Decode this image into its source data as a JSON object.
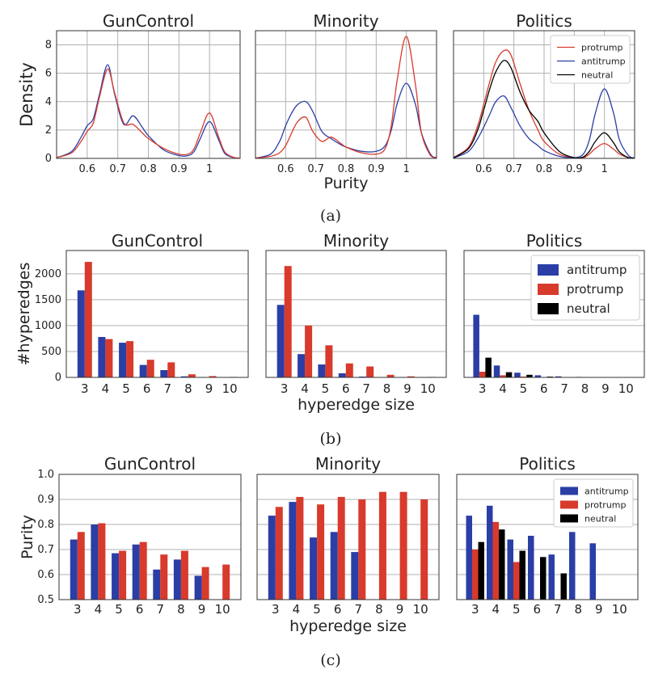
{
  "colors": {
    "antitrump": "#2b3ea6",
    "protrump": "#d83a2c",
    "neutral": "#000000",
    "grid": "#b0b0b0"
  },
  "captions": {
    "a": "(a)",
    "b": "(b)",
    "c": "(c)"
  },
  "chart_data": [
    {
      "id": "a",
      "type": "line",
      "ylabel": "Density",
      "xlabel": "Purity",
      "xlim": [
        0.5,
        1.1
      ],
      "ylim": [
        0,
        9
      ],
      "xticks": [
        "0.6",
        "0.7",
        "0.8",
        "0.9",
        "1"
      ],
      "xtick_values": [
        0.6,
        0.7,
        0.8,
        0.9,
        1.0
      ],
      "yticks": [
        "0",
        "2",
        "4",
        "6",
        "8"
      ],
      "ytick_values": [
        0,
        2,
        4,
        6,
        8
      ],
      "x": [
        0.5,
        0.55,
        0.58,
        0.6,
        0.62,
        0.64,
        0.667,
        0.69,
        0.72,
        0.75,
        0.78,
        0.8,
        0.85,
        0.9,
        0.93,
        0.95,
        0.97,
        1.0,
        1.03,
        1.05,
        1.08,
        1.1
      ],
      "panels": [
        {
          "title": "GunControl",
          "series": [
            {
              "name": "antitrump",
              "values": [
                0.05,
                0.5,
                1.5,
                2.3,
                2.8,
                4.5,
                6.6,
                4.5,
                2.4,
                3.0,
                2.2,
                1.6,
                0.6,
                0.2,
                0.2,
                0.5,
                1.4,
                2.6,
                1.3,
                0.35,
                0.05,
                0.02
              ]
            },
            {
              "name": "protrump",
              "values": [
                0.05,
                0.4,
                1.2,
                1.9,
                2.5,
                4.3,
                6.3,
                4.6,
                2.5,
                2.4,
                1.8,
                1.4,
                0.7,
                0.3,
                0.3,
                0.7,
                1.8,
                3.2,
                1.5,
                0.45,
                0.06,
                0.02
              ]
            }
          ]
        },
        {
          "title": "Minority",
          "series": [
            {
              "name": "antitrump",
              "values": [
                0.02,
                0.3,
                1.2,
                2.3,
                3.2,
                3.8,
                4.0,
                3.3,
                1.9,
                1.4,
                1.0,
                0.8,
                0.5,
                0.5,
                0.9,
                2.0,
                3.9,
                5.3,
                3.8,
                1.8,
                0.3,
                0.05
              ]
            },
            {
              "name": "protrump",
              "values": [
                0.02,
                0.15,
                0.4,
                0.9,
                1.8,
                2.6,
                2.9,
                1.9,
                1.2,
                1.5,
                1.1,
                0.8,
                0.4,
                0.3,
                0.7,
                2.3,
                5.6,
                8.6,
                5.2,
                1.8,
                0.2,
                0.03
              ]
            }
          ]
        },
        {
          "title": "Politics",
          "series": [
            {
              "name": "protrump",
              "values": [
                0.05,
                0.8,
                2.3,
                3.8,
                5.4,
                6.8,
                7.6,
                7.3,
                5.3,
                3.4,
                2.0,
                1.2,
                0.3,
                0.05,
                0.05,
                0.3,
                0.7,
                1.05,
                0.65,
                0.3,
                0.05,
                0.02
              ]
            },
            {
              "name": "antitrump",
              "values": [
                0.03,
                0.5,
                1.4,
                2.2,
                3.1,
                4.0,
                4.4,
                3.6,
                2.3,
                1.4,
                0.9,
                0.55,
                0.15,
                0.05,
                0.3,
                1.3,
                3.2,
                4.9,
                3.2,
                1.3,
                0.2,
                0.03
              ]
            },
            {
              "name": "neutral",
              "values": [
                0.04,
                0.7,
                2.0,
                3.4,
                4.9,
                6.1,
                6.9,
                6.4,
                4.7,
                3.4,
                2.6,
                1.8,
                0.5,
                0.05,
                0.1,
                0.5,
                1.2,
                1.8,
                1.1,
                0.45,
                0.05,
                0.02
              ]
            }
          ]
        }
      ],
      "legend": {
        "panel": 2,
        "position": "top-right",
        "entries": [
          "protrump",
          "antitrump",
          "neutral"
        ]
      }
    },
    {
      "id": "b",
      "type": "bar",
      "ylabel": "#hyperedges",
      "xlabel": "hyperedge size",
      "categories": [
        "3",
        "4",
        "5",
        "6",
        "7",
        "8",
        "9",
        "10"
      ],
      "ylim": [
        0,
        2450
      ],
      "yticks": [
        "0",
        "500",
        "1000",
        "1500",
        "2000"
      ],
      "ytick_values": [
        0,
        500,
        1000,
        1500,
        2000
      ],
      "panels": [
        {
          "title": "GunControl",
          "series": [
            {
              "name": "antitrump",
              "values": [
                1680,
                780,
                670,
                240,
                140,
                20,
                8,
                4
              ]
            },
            {
              "name": "protrump",
              "values": [
                2230,
                740,
                700,
                340,
                290,
                60,
                25,
                10
              ]
            }
          ]
        },
        {
          "title": "Minority",
          "series": [
            {
              "name": "antitrump",
              "values": [
                1400,
                450,
                250,
                80,
                15,
                5,
                2,
                1
              ]
            },
            {
              "name": "protrump",
              "values": [
                2150,
                1000,
                620,
                270,
                210,
                50,
                20,
                10
              ]
            }
          ]
        },
        {
          "title": "Politics",
          "series": [
            {
              "name": "antitrump",
              "values": [
                1210,
                230,
                90,
                40,
                20,
                10,
                4,
                2
              ]
            },
            {
              "name": "protrump",
              "values": [
                110,
                40,
                15,
                5,
                2,
                1,
                0,
                0
              ]
            },
            {
              "name": "neutral",
              "values": [
                380,
                100,
                50,
                15,
                5,
                2,
                1,
                0
              ]
            }
          ]
        }
      ],
      "legend": {
        "panel": 2,
        "position": "top-right",
        "entries": [
          "antitrump",
          "protrump",
          "neutral"
        ]
      }
    },
    {
      "id": "c",
      "type": "bar",
      "ylabel": "Purity",
      "xlabel": "hyperedge size",
      "categories": [
        "3",
        "4",
        "5",
        "6",
        "7",
        "8",
        "9",
        "10"
      ],
      "ylim": [
        0.5,
        1.0
      ],
      "yticks": [
        "0.5",
        "0.6",
        "0.7",
        "0.8",
        "0.9",
        "1.0"
      ],
      "ytick_values": [
        0.5,
        0.6,
        0.7,
        0.8,
        0.9,
        1.0
      ],
      "panels": [
        {
          "title": "GunControl",
          "series": [
            {
              "name": "antitrump",
              "values": [
                0.74,
                0.8,
                0.685,
                0.72,
                0.62,
                0.66,
                0.595,
                null
              ]
            },
            {
              "name": "protrump",
              "values": [
                0.77,
                0.805,
                0.695,
                0.73,
                0.68,
                0.695,
                0.63,
                0.64
              ]
            }
          ]
        },
        {
          "title": "Minority",
          "series": [
            {
              "name": "antitrump",
              "values": [
                0.835,
                0.89,
                0.748,
                0.77,
                0.69,
                null,
                null,
                null
              ]
            },
            {
              "name": "protrump",
              "values": [
                0.87,
                0.91,
                0.88,
                0.91,
                0.9,
                0.93,
                0.93,
                0.9
              ]
            }
          ]
        },
        {
          "title": "Politics",
          "series": [
            {
              "name": "antitrump",
              "values": [
                0.835,
                0.875,
                0.74,
                0.755,
                0.68,
                0.77,
                0.725,
                null
              ]
            },
            {
              "name": "protrump",
              "values": [
                0.7,
                0.81,
                0.65,
                null,
                null,
                null,
                null,
                null
              ]
            },
            {
              "name": "neutral",
              "values": [
                0.73,
                0.78,
                0.695,
                0.67,
                0.605,
                null,
                null,
                null
              ]
            }
          ]
        }
      ],
      "legend": {
        "panel": 2,
        "position": "top-right",
        "entries": [
          "antitrump",
          "protrump",
          "neutral"
        ]
      }
    }
  ]
}
